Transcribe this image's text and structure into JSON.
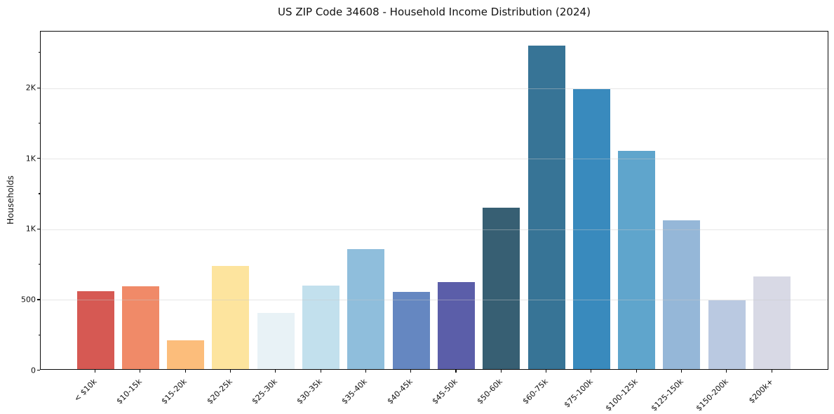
{
  "chart_data": {
    "type": "bar",
    "title": "US ZIP Code 34608 - Household Income Distribution (2024)",
    "xlabel": "",
    "ylabel": "Households",
    "categories": [
      "< $10k",
      "$10-15k",
      "$15-20k",
      "$20-25k",
      "$25-30k",
      "$30-35k",
      "$35-40k",
      "$40-45k",
      "$45-50k",
      "$50-60k",
      "$60-75k",
      "$75-100k",
      "$100-125k",
      "$125-150k",
      "$150-200k",
      "$200k+"
    ],
    "values": [
      550,
      585,
      205,
      730,
      400,
      590,
      850,
      545,
      615,
      1145,
      2290,
      1985,
      1545,
      1055,
      485,
      655
    ],
    "bar_colors": [
      "#d65953",
      "#f08a68",
      "#fcbd7b",
      "#fde49e",
      "#e8f2f6",
      "#c2e0ed",
      "#8fbedc",
      "#6587c1",
      "#5b5ea9",
      "#375f73",
      "#377496",
      "#398abd",
      "#5fa5cc",
      "#95b7d8",
      "#bac9e1",
      "#d8d9e5"
    ],
    "ylim": [
      0,
      2400
    ],
    "yticks": [
      {
        "value": 0,
        "label": "0"
      },
      {
        "value": 500,
        "label": "500"
      },
      {
        "value": 1000,
        "label": "1K"
      },
      {
        "value": 1500,
        "label": "1K"
      },
      {
        "value": 2000,
        "label": "2K"
      }
    ],
    "minor_yticks": [
      250,
      750,
      1250,
      1750,
      2250
    ],
    "grid": true,
    "grid_color": "#e6e6e6",
    "axis_color": "#0a0a0a",
    "legend_position": "none"
  }
}
